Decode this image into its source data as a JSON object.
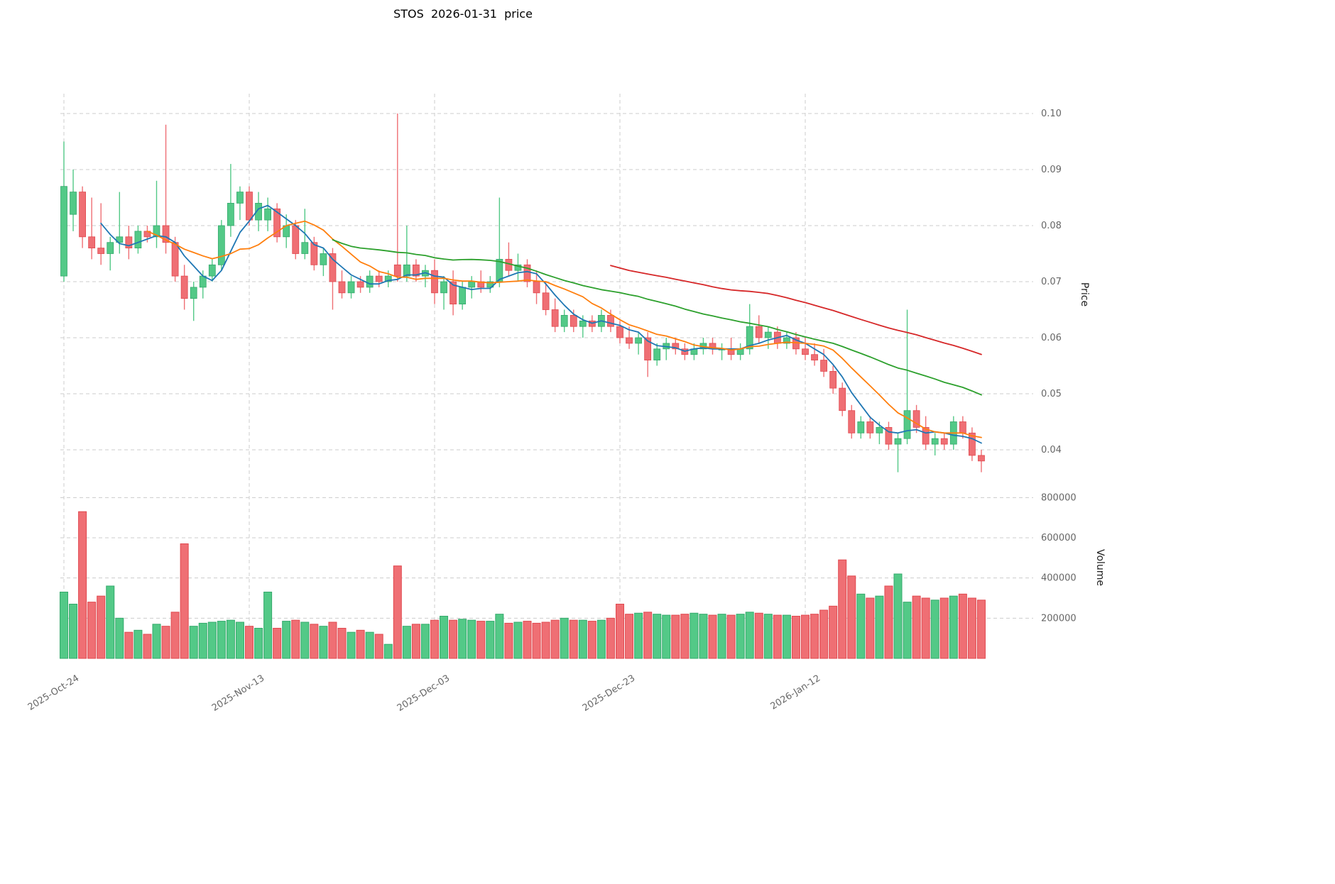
{
  "chart_data": {
    "type": "candlestick",
    "title": "STOS  2026-01-31  price",
    "ylabel_price": "Price",
    "ylabel_volume": "Volume",
    "start_date": "2025-10-24",
    "price_ticks": [
      0.04,
      0.05,
      0.06,
      0.07,
      0.08,
      0.09,
      0.1
    ],
    "volume_ticks": [
      200000,
      400000,
      600000,
      800000
    ],
    "x_ticks": [
      {
        "index": 0,
        "label": "2025-Oct-24"
      },
      {
        "index": 20,
        "label": "2025-Nov-13"
      },
      {
        "index": 40,
        "label": "2025-Dec-03"
      },
      {
        "index": 60,
        "label": "2025-Dec-23"
      },
      {
        "index": 80,
        "label": "2026-Jan-12"
      }
    ],
    "moving_averages": [
      {
        "period": 5,
        "color": "#1f77b4"
      },
      {
        "period": 10,
        "color": "#ff7f0e"
      },
      {
        "period": 30,
        "color": "#2ca02c"
      },
      {
        "period": 60,
        "color": "#d62728"
      }
    ],
    "colors": {
      "up": "#53c987",
      "down": "#ef6f74",
      "up_edge": "#35a96c",
      "down_edge": "#e0494f",
      "grid": "#cccccc"
    },
    "price_ylim": [
      0.034,
      0.104
    ],
    "volume_ylim": [
      0,
      860000
    ],
    "ohlcv": [
      [
        0.071,
        0.095,
        0.07,
        0.087,
        330000
      ],
      [
        0.082,
        0.09,
        0.079,
        0.086,
        270000
      ],
      [
        0.086,
        0.087,
        0.076,
        0.078,
        730000
      ],
      [
        0.078,
        0.085,
        0.074,
        0.076,
        280000
      ],
      [
        0.076,
        0.084,
        0.073,
        0.075,
        310000
      ],
      [
        0.075,
        0.078,
        0.072,
        0.077,
        360000
      ],
      [
        0.077,
        0.086,
        0.075,
        0.078,
        200000
      ],
      [
        0.078,
        0.08,
        0.074,
        0.076,
        130000
      ],
      [
        0.076,
        0.08,
        0.075,
        0.079,
        140000
      ],
      [
        0.079,
        0.08,
        0.077,
        0.078,
        120000
      ],
      [
        0.078,
        0.088,
        0.076,
        0.08,
        170000
      ],
      [
        0.08,
        0.098,
        0.075,
        0.077,
        160000
      ],
      [
        0.077,
        0.078,
        0.07,
        0.071,
        230000
      ],
      [
        0.071,
        0.073,
        0.065,
        0.067,
        570000
      ],
      [
        0.067,
        0.07,
        0.063,
        0.069,
        160000
      ],
      [
        0.069,
        0.072,
        0.067,
        0.071,
        175000
      ],
      [
        0.071,
        0.074,
        0.07,
        0.073,
        180000
      ],
      [
        0.073,
        0.081,
        0.072,
        0.08,
        185000
      ],
      [
        0.08,
        0.091,
        0.078,
        0.084,
        190000
      ],
      [
        0.084,
        0.087,
        0.081,
        0.086,
        180000
      ],
      [
        0.086,
        0.087,
        0.08,
        0.081,
        160000
      ],
      [
        0.081,
        0.086,
        0.079,
        0.084,
        150000
      ],
      [
        0.081,
        0.085,
        0.079,
        0.083,
        330000
      ],
      [
        0.083,
        0.084,
        0.077,
        0.078,
        150000
      ],
      [
        0.078,
        0.082,
        0.076,
        0.08,
        185000
      ],
      [
        0.08,
        0.081,
        0.074,
        0.075,
        190000
      ],
      [
        0.075,
        0.083,
        0.074,
        0.077,
        180000
      ],
      [
        0.077,
        0.078,
        0.072,
        0.073,
        170000
      ],
      [
        0.073,
        0.076,
        0.071,
        0.075,
        160000
      ],
      [
        0.075,
        0.076,
        0.065,
        0.07,
        180000
      ],
      [
        0.07,
        0.072,
        0.067,
        0.068,
        150000
      ],
      [
        0.068,
        0.071,
        0.067,
        0.07,
        130000
      ],
      [
        0.07,
        0.071,
        0.068,
        0.069,
        140000
      ],
      [
        0.069,
        0.072,
        0.068,
        0.071,
        130000
      ],
      [
        0.071,
        0.072,
        0.069,
        0.07,
        120000
      ],
      [
        0.07,
        0.072,
        0.069,
        0.071,
        70000
      ],
      [
        0.073,
        0.1,
        0.07,
        0.071,
        460000
      ],
      [
        0.071,
        0.08,
        0.07,
        0.073,
        160000
      ],
      [
        0.073,
        0.074,
        0.07,
        0.071,
        170000
      ],
      [
        0.071,
        0.073,
        0.069,
        0.072,
        170000
      ],
      [
        0.072,
        0.074,
        0.066,
        0.068,
        190000
      ],
      [
        0.068,
        0.071,
        0.065,
        0.07,
        210000
      ],
      [
        0.07,
        0.072,
        0.064,
        0.066,
        190000
      ],
      [
        0.066,
        0.07,
        0.065,
        0.069,
        195000
      ],
      [
        0.069,
        0.071,
        0.067,
        0.07,
        190000
      ],
      [
        0.07,
        0.072,
        0.068,
        0.069,
        185000
      ],
      [
        0.069,
        0.071,
        0.068,
        0.07,
        185000
      ],
      [
        0.07,
        0.085,
        0.069,
        0.074,
        220000
      ],
      [
        0.074,
        0.077,
        0.071,
        0.072,
        175000
      ],
      [
        0.072,
        0.075,
        0.07,
        0.073,
        180000
      ],
      [
        0.073,
        0.074,
        0.069,
        0.07,
        185000
      ],
      [
        0.07,
        0.072,
        0.066,
        0.068,
        175000
      ],
      [
        0.068,
        0.07,
        0.064,
        0.065,
        180000
      ],
      [
        0.065,
        0.067,
        0.061,
        0.062,
        190000
      ],
      [
        0.062,
        0.065,
        0.061,
        0.064,
        200000
      ],
      [
        0.064,
        0.065,
        0.061,
        0.062,
        190000
      ],
      [
        0.062,
        0.064,
        0.06,
        0.063,
        190000
      ],
      [
        0.063,
        0.064,
        0.061,
        0.062,
        185000
      ],
      [
        0.062,
        0.065,
        0.061,
        0.064,
        190000
      ],
      [
        0.064,
        0.065,
        0.061,
        0.062,
        200000
      ],
      [
        0.062,
        0.063,
        0.059,
        0.06,
        270000
      ],
      [
        0.06,
        0.062,
        0.058,
        0.059,
        220000
      ],
      [
        0.059,
        0.061,
        0.057,
        0.06,
        225000
      ],
      [
        0.06,
        0.061,
        0.053,
        0.056,
        230000
      ],
      [
        0.056,
        0.059,
        0.055,
        0.058,
        220000
      ],
      [
        0.058,
        0.06,
        0.056,
        0.059,
        215000
      ],
      [
        0.059,
        0.06,
        0.057,
        0.058,
        215000
      ],
      [
        0.058,
        0.059,
        0.056,
        0.057,
        220000
      ],
      [
        0.057,
        0.059,
        0.056,
        0.058,
        225000
      ],
      [
        0.058,
        0.06,
        0.057,
        0.059,
        220000
      ],
      [
        0.059,
        0.06,
        0.057,
        0.058,
        215000
      ],
      [
        0.058,
        0.059,
        0.056,
        0.058,
        220000
      ],
      [
        0.058,
        0.06,
        0.056,
        0.057,
        215000
      ],
      [
        0.057,
        0.059,
        0.056,
        0.058,
        220000
      ],
      [
        0.058,
        0.066,
        0.057,
        0.062,
        230000
      ],
      [
        0.062,
        0.064,
        0.059,
        0.06,
        225000
      ],
      [
        0.06,
        0.062,
        0.058,
        0.061,
        220000
      ],
      [
        0.061,
        0.062,
        0.058,
        0.059,
        215000
      ],
      [
        0.059,
        0.061,
        0.058,
        0.06,
        215000
      ],
      [
        0.06,
        0.061,
        0.057,
        0.058,
        210000
      ],
      [
        0.058,
        0.06,
        0.056,
        0.057,
        215000
      ],
      [
        0.057,
        0.059,
        0.055,
        0.056,
        220000
      ],
      [
        0.056,
        0.058,
        0.053,
        0.054,
        240000
      ],
      [
        0.054,
        0.055,
        0.05,
        0.051,
        260000
      ],
      [
        0.051,
        0.052,
        0.046,
        0.047,
        490000
      ],
      [
        0.047,
        0.048,
        0.042,
        0.043,
        410000
      ],
      [
        0.043,
        0.046,
        0.042,
        0.045,
        320000
      ],
      [
        0.045,
        0.046,
        0.042,
        0.043,
        300000
      ],
      [
        0.043,
        0.045,
        0.041,
        0.044,
        310000
      ],
      [
        0.044,
        0.045,
        0.04,
        0.041,
        360000
      ],
      [
        0.041,
        0.043,
        0.036,
        0.042,
        420000
      ],
      [
        0.042,
        0.065,
        0.041,
        0.047,
        280000
      ],
      [
        0.047,
        0.048,
        0.043,
        0.044,
        310000
      ],
      [
        0.044,
        0.046,
        0.04,
        0.041,
        300000
      ],
      [
        0.041,
        0.043,
        0.039,
        0.042,
        290000
      ],
      [
        0.042,
        0.043,
        0.04,
        0.041,
        300000
      ],
      [
        0.041,
        0.046,
        0.04,
        0.045,
        310000
      ],
      [
        0.045,
        0.046,
        0.042,
        0.043,
        320000
      ],
      [
        0.043,
        0.044,
        0.038,
        0.039,
        300000
      ],
      [
        0.039,
        0.04,
        0.036,
        0.038,
        290000
      ]
    ]
  }
}
